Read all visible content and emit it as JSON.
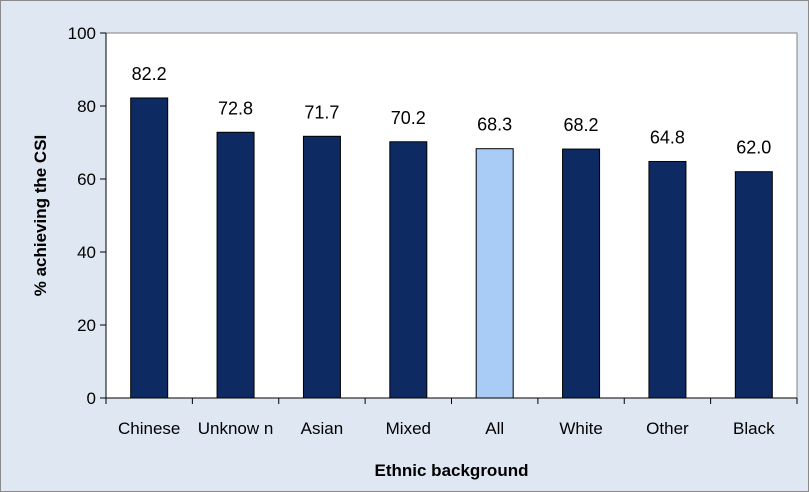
{
  "chart_data": {
    "type": "bar",
    "title": "",
    "xlabel": "Ethnic background",
    "ylabel": "% achieving the CSI",
    "categories": [
      "Chinese",
      "Unknow n",
      "Asian",
      "Mixed",
      "All",
      "White",
      "Other",
      "Black"
    ],
    "values": [
      82.2,
      72.8,
      71.7,
      70.2,
      68.3,
      68.2,
      64.8,
      62.0
    ],
    "value_labels": [
      "82.2",
      "72.8",
      "71.7",
      "70.2",
      "68.3",
      "68.2",
      "64.8",
      "62.0"
    ],
    "ylim": [
      0,
      100
    ],
    "yticks": [
      0,
      20,
      40,
      60,
      80,
      100
    ],
    "ytick_labels": [
      "0",
      "20",
      "40",
      "60",
      "80",
      "100"
    ],
    "grid": false,
    "legend": "none",
    "highlight_category": "All",
    "colors": {
      "bar": "#0d2a63",
      "highlight_bar": "#a9ccf7",
      "plot_background": "#ffffff",
      "chart_background": "#dfe8f2"
    }
  }
}
